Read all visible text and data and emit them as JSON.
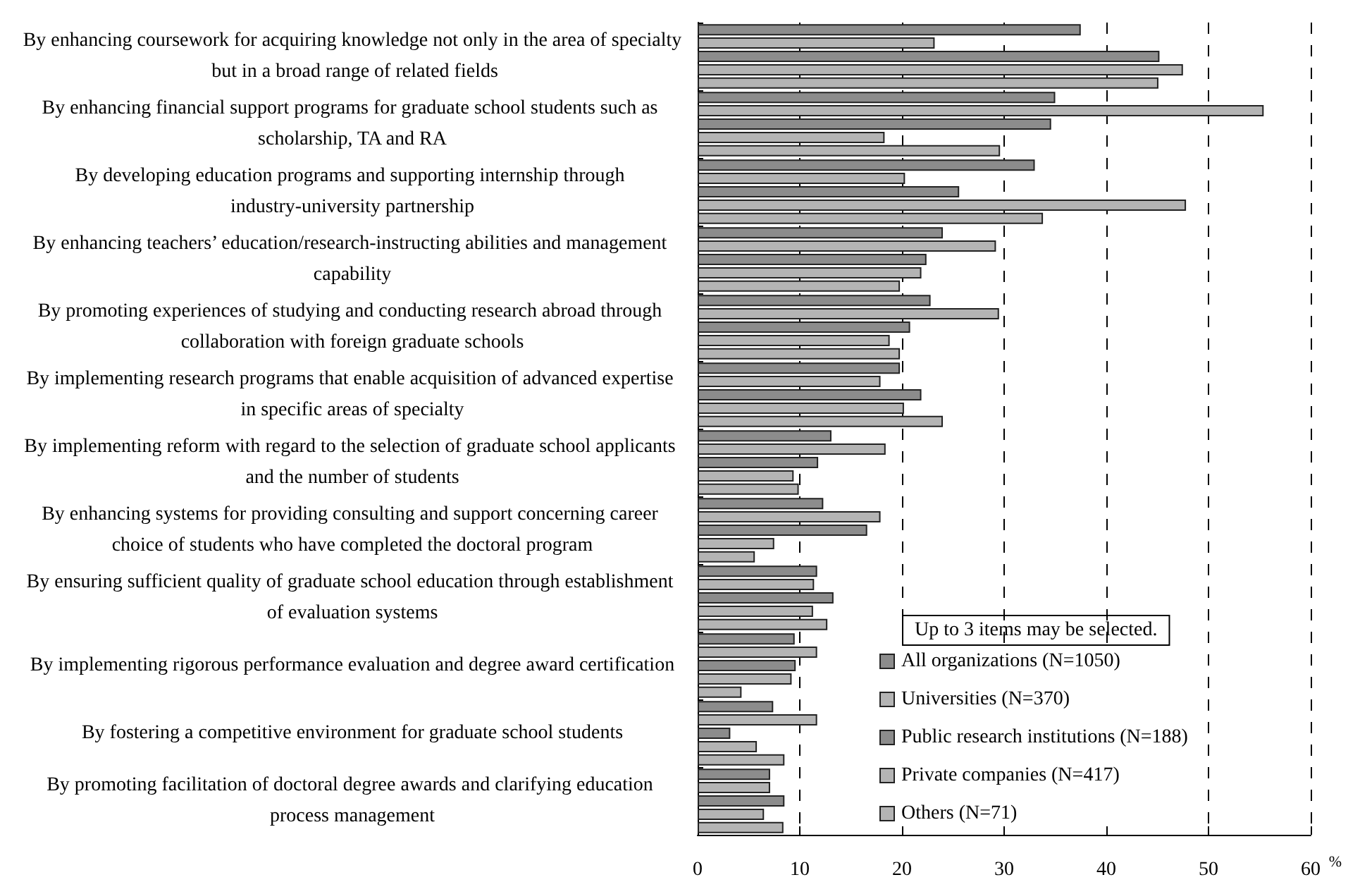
{
  "chart_data": {
    "type": "bar",
    "orientation": "horizontal",
    "xlabel": "%",
    "categories": [
      "By enhancing coursework for acquiring knowledge not only in the area of specialty but in a broad range of related fields",
      "By enhancing financial support programs for graduate school students such as scholarship, TA and RA",
      "By developing education programs and supporting internship through industry-university partnership",
      "By enhancing teachers’ education/research-instructing abilities and management capability",
      "By promoting experiences of studying and conducting research abroad through collaboration with foreign graduate schools",
      "By implementing research programs that enable acquisition of advanced expertise in specific areas of specialty",
      "By implementing reform with regard to the selection of graduate school applicants and the number of students",
      "By enhancing systems for providing consulting and support concerning career choice of students who have completed the doctoral program",
      "By ensuring sufficient quality of graduate school education through establishment of evaluation systems",
      "By implementing rigorous performance evaluation and degree award certification",
      "By fostering a competitive environment for graduate school students",
      "By promoting facilitation of doctoral degree awards and clarifying education process management"
    ],
    "series": [
      {
        "name": "All organizations (N=1050)",
        "color": "#8c8c8c",
        "values": [
          37.5,
          35.0,
          33.0,
          24.0,
          22.8,
          19.8,
          13.1,
          12.3,
          11.7,
          9.5,
          7.4,
          7.1
        ]
      },
      {
        "name": "Universities (N=370)",
        "color": "#b4b4b4",
        "values": [
          23.2,
          55.4,
          20.3,
          29.2,
          29.5,
          17.9,
          18.4,
          17.9,
          11.4,
          11.7,
          11.7,
          7.1
        ]
      },
      {
        "name": "Public research institutions (N=188)",
        "color": "#8c8c8c",
        "values": [
          45.2,
          34.6,
          25.6,
          22.4,
          20.8,
          21.9,
          11.8,
          16.6,
          13.3,
          9.6,
          3.2,
          8.5
        ]
      },
      {
        "name": "Private companies (N=417)",
        "color": "#b4b4b4",
        "values": [
          47.5,
          18.3,
          47.8,
          21.9,
          18.8,
          20.2,
          9.4,
          7.5,
          11.3,
          9.2,
          5.8,
          6.5
        ]
      },
      {
        "name": "Others (N=71)",
        "color": "#b4b4b4",
        "values": [
          45.1,
          29.6,
          33.8,
          19.8,
          19.8,
          24.0,
          9.9,
          5.6,
          12.7,
          4.3,
          8.5,
          8.4
        ]
      }
    ],
    "xlim": [
      0,
      60
    ],
    "xticks": [
      0,
      10,
      20,
      30,
      40,
      50,
      60
    ],
    "grid": "x",
    "legend": "bottom right",
    "annotations": [
      "Up to 3 items may be selected."
    ]
  }
}
